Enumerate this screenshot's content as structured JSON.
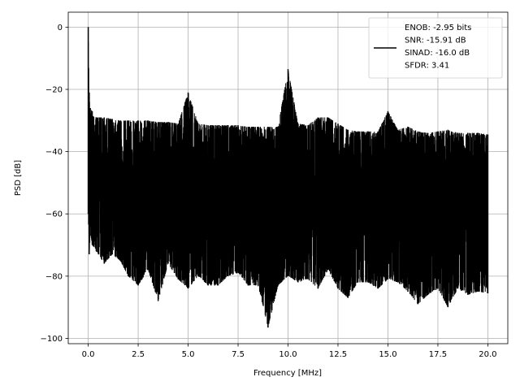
{
  "chart_data": {
    "type": "line",
    "xlabel": "Frequency [MHz]",
    "ylabel": "PSD [dB]",
    "xlim": [
      -1.0,
      21.0
    ],
    "ylim": [
      -101.7,
      4.8
    ],
    "xticks": [
      0.0,
      2.5,
      5.0,
      7.5,
      10.0,
      12.5,
      15.0,
      17.5,
      20.0
    ],
    "xtick_labels": [
      "0.0",
      "2.5",
      "5.0",
      "7.5",
      "10.0",
      "12.5",
      "15.0",
      "17.5",
      "20.0"
    ],
    "yticks": [
      0,
      -20,
      -40,
      -60,
      -80,
      -100
    ],
    "ytick_labels": [
      "0",
      "−20",
      "−40",
      "−60",
      "−80",
      "−100"
    ],
    "grid": true,
    "legend_position": "top-right",
    "line_color": "#000000",
    "series": [
      {
        "name": "ENOB: -2.95 bits\nSNR: -15.91 dB\nSINAD: -16.0 dB\nSFDR: 3.41",
        "x": [
          0.0,
          0.05,
          0.1,
          0.2,
          0.4,
          0.8,
          1.2,
          1.6,
          2.0,
          2.5,
          3.0,
          3.5,
          4.0,
          4.5,
          5.0,
          5.5,
          6.0,
          6.5,
          7.0,
          7.5,
          8.0,
          8.5,
          9.0,
          9.5,
          10.0,
          10.5,
          11.0,
          11.5,
          12.0,
          12.5,
          13.0,
          13.5,
          14.0,
          14.5,
          15.0,
          15.5,
          16.0,
          16.5,
          17.0,
          17.5,
          18.0,
          18.5,
          19.0,
          19.5,
          20.0
        ],
        "upper": [
          0.0,
          -21.0,
          -26.0,
          -27.0,
          -29.0,
          -29.0,
          -29.5,
          -30.0,
          -30.0,
          -30.0,
          -30.0,
          -30.5,
          -30.5,
          -31.0,
          -21.0,
          -31.0,
          -31.5,
          -31.5,
          -31.5,
          -31.5,
          -32.0,
          -32.0,
          -32.0,
          -32.0,
          -13.5,
          -31.0,
          -31.5,
          -29.0,
          -29.0,
          -31.0,
          -33.0,
          -33.5,
          -33.5,
          -33.5,
          -27.0,
          -33.0,
          -32.0,
          -33.5,
          -34.0,
          -33.5,
          -33.0,
          -34.0,
          -34.0,
          -34.0,
          -34.5
        ],
        "lower": [
          -60.0,
          -73.0,
          -67.0,
          -70.0,
          -72.0,
          -76.0,
          -73.0,
          -75.0,
          -80.0,
          -83.0,
          -78.0,
          -88.0,
          -76.0,
          -81.0,
          -84.0,
          -80.0,
          -83.0,
          -83.0,
          -80.0,
          -79.0,
          -83.0,
          -83.0,
          -96.5,
          -83.0,
          -80.0,
          -82.0,
          -81.0,
          -84.0,
          -78.0,
          -84.0,
          -87.0,
          -82.0,
          -82.0,
          -84.0,
          -81.0,
          -82.0,
          -85.0,
          -89.0,
          -86.0,
          -84.0,
          -90.0,
          -84.0,
          -86.0,
          -85.0,
          -85.5
        ]
      }
    ]
  }
}
